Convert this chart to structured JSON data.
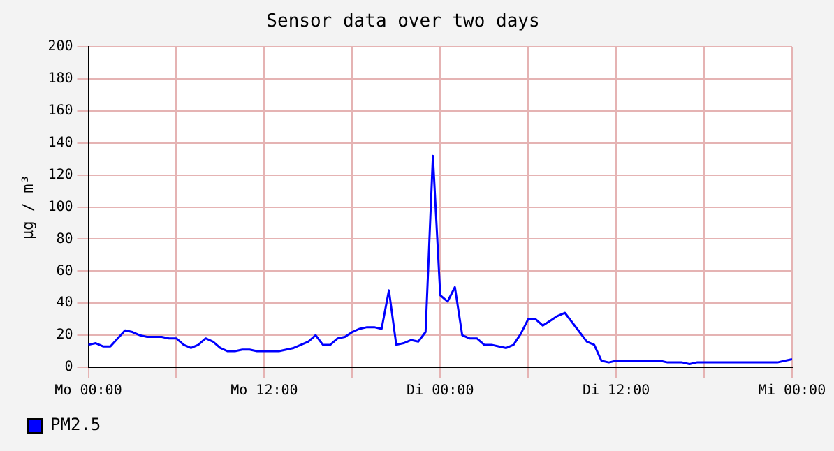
{
  "chart_data": {
    "type": "line",
    "title": "Sensor data over two days",
    "ylabel": "µg / m³",
    "categories": [
      "Mo 00:00",
      null,
      null,
      null,
      null,
      null,
      null,
      null,
      null,
      null,
      null,
      null,
      null,
      null,
      null,
      null,
      null,
      null,
      null,
      null,
      null,
      null,
      null,
      null,
      "Mo 12:00",
      null,
      null,
      null,
      null,
      null,
      null,
      null,
      null,
      null,
      null,
      null,
      null,
      null,
      null,
      null,
      null,
      null,
      null,
      null,
      null,
      null,
      null,
      null,
      "Di 00:00",
      null,
      null,
      null,
      null,
      null,
      null,
      null,
      null,
      null,
      null,
      null,
      null,
      null,
      null,
      null,
      null,
      null,
      null,
      null,
      null,
      null,
      null,
      null,
      "Di 12:00",
      null,
      null,
      null,
      null,
      null,
      null,
      null,
      null,
      null,
      null,
      null,
      null,
      null,
      null,
      null,
      null,
      null,
      null,
      null,
      null,
      null,
      null,
      null,
      "Mi 00:00"
    ],
    "ylim": [
      0,
      200
    ],
    "yticks": [
      0,
      20,
      40,
      60,
      80,
      100,
      120,
      140,
      160,
      180,
      200
    ],
    "grid": true,
    "legend": "bottom left",
    "marker": "none",
    "line_style": "solid",
    "series": [
      {
        "name": "PM2.5",
        "color": "#0000ff",
        "values": [
          14,
          15,
          13,
          13,
          18,
          23,
          22,
          20,
          19,
          19,
          19,
          18,
          18,
          14,
          12,
          14,
          18,
          16,
          12,
          10,
          10,
          11,
          11,
          10,
          10,
          10,
          10,
          11,
          12,
          14,
          16,
          20,
          14,
          14,
          18,
          19,
          22,
          24,
          25,
          25,
          24,
          48,
          14,
          15,
          17,
          16,
          22,
          132,
          45,
          41,
          50,
          20,
          18,
          18,
          14,
          14,
          13,
          12,
          14,
          21,
          30,
          30,
          26,
          29,
          32,
          34,
          28,
          22,
          16,
          14,
          4,
          3,
          4,
          4,
          4,
          4,
          4,
          4,
          4,
          3,
          3,
          3,
          2,
          3,
          3,
          3,
          3,
          3,
          3,
          3,
          3,
          3,
          3,
          3,
          3,
          4,
          5
        ]
      }
    ]
  }
}
